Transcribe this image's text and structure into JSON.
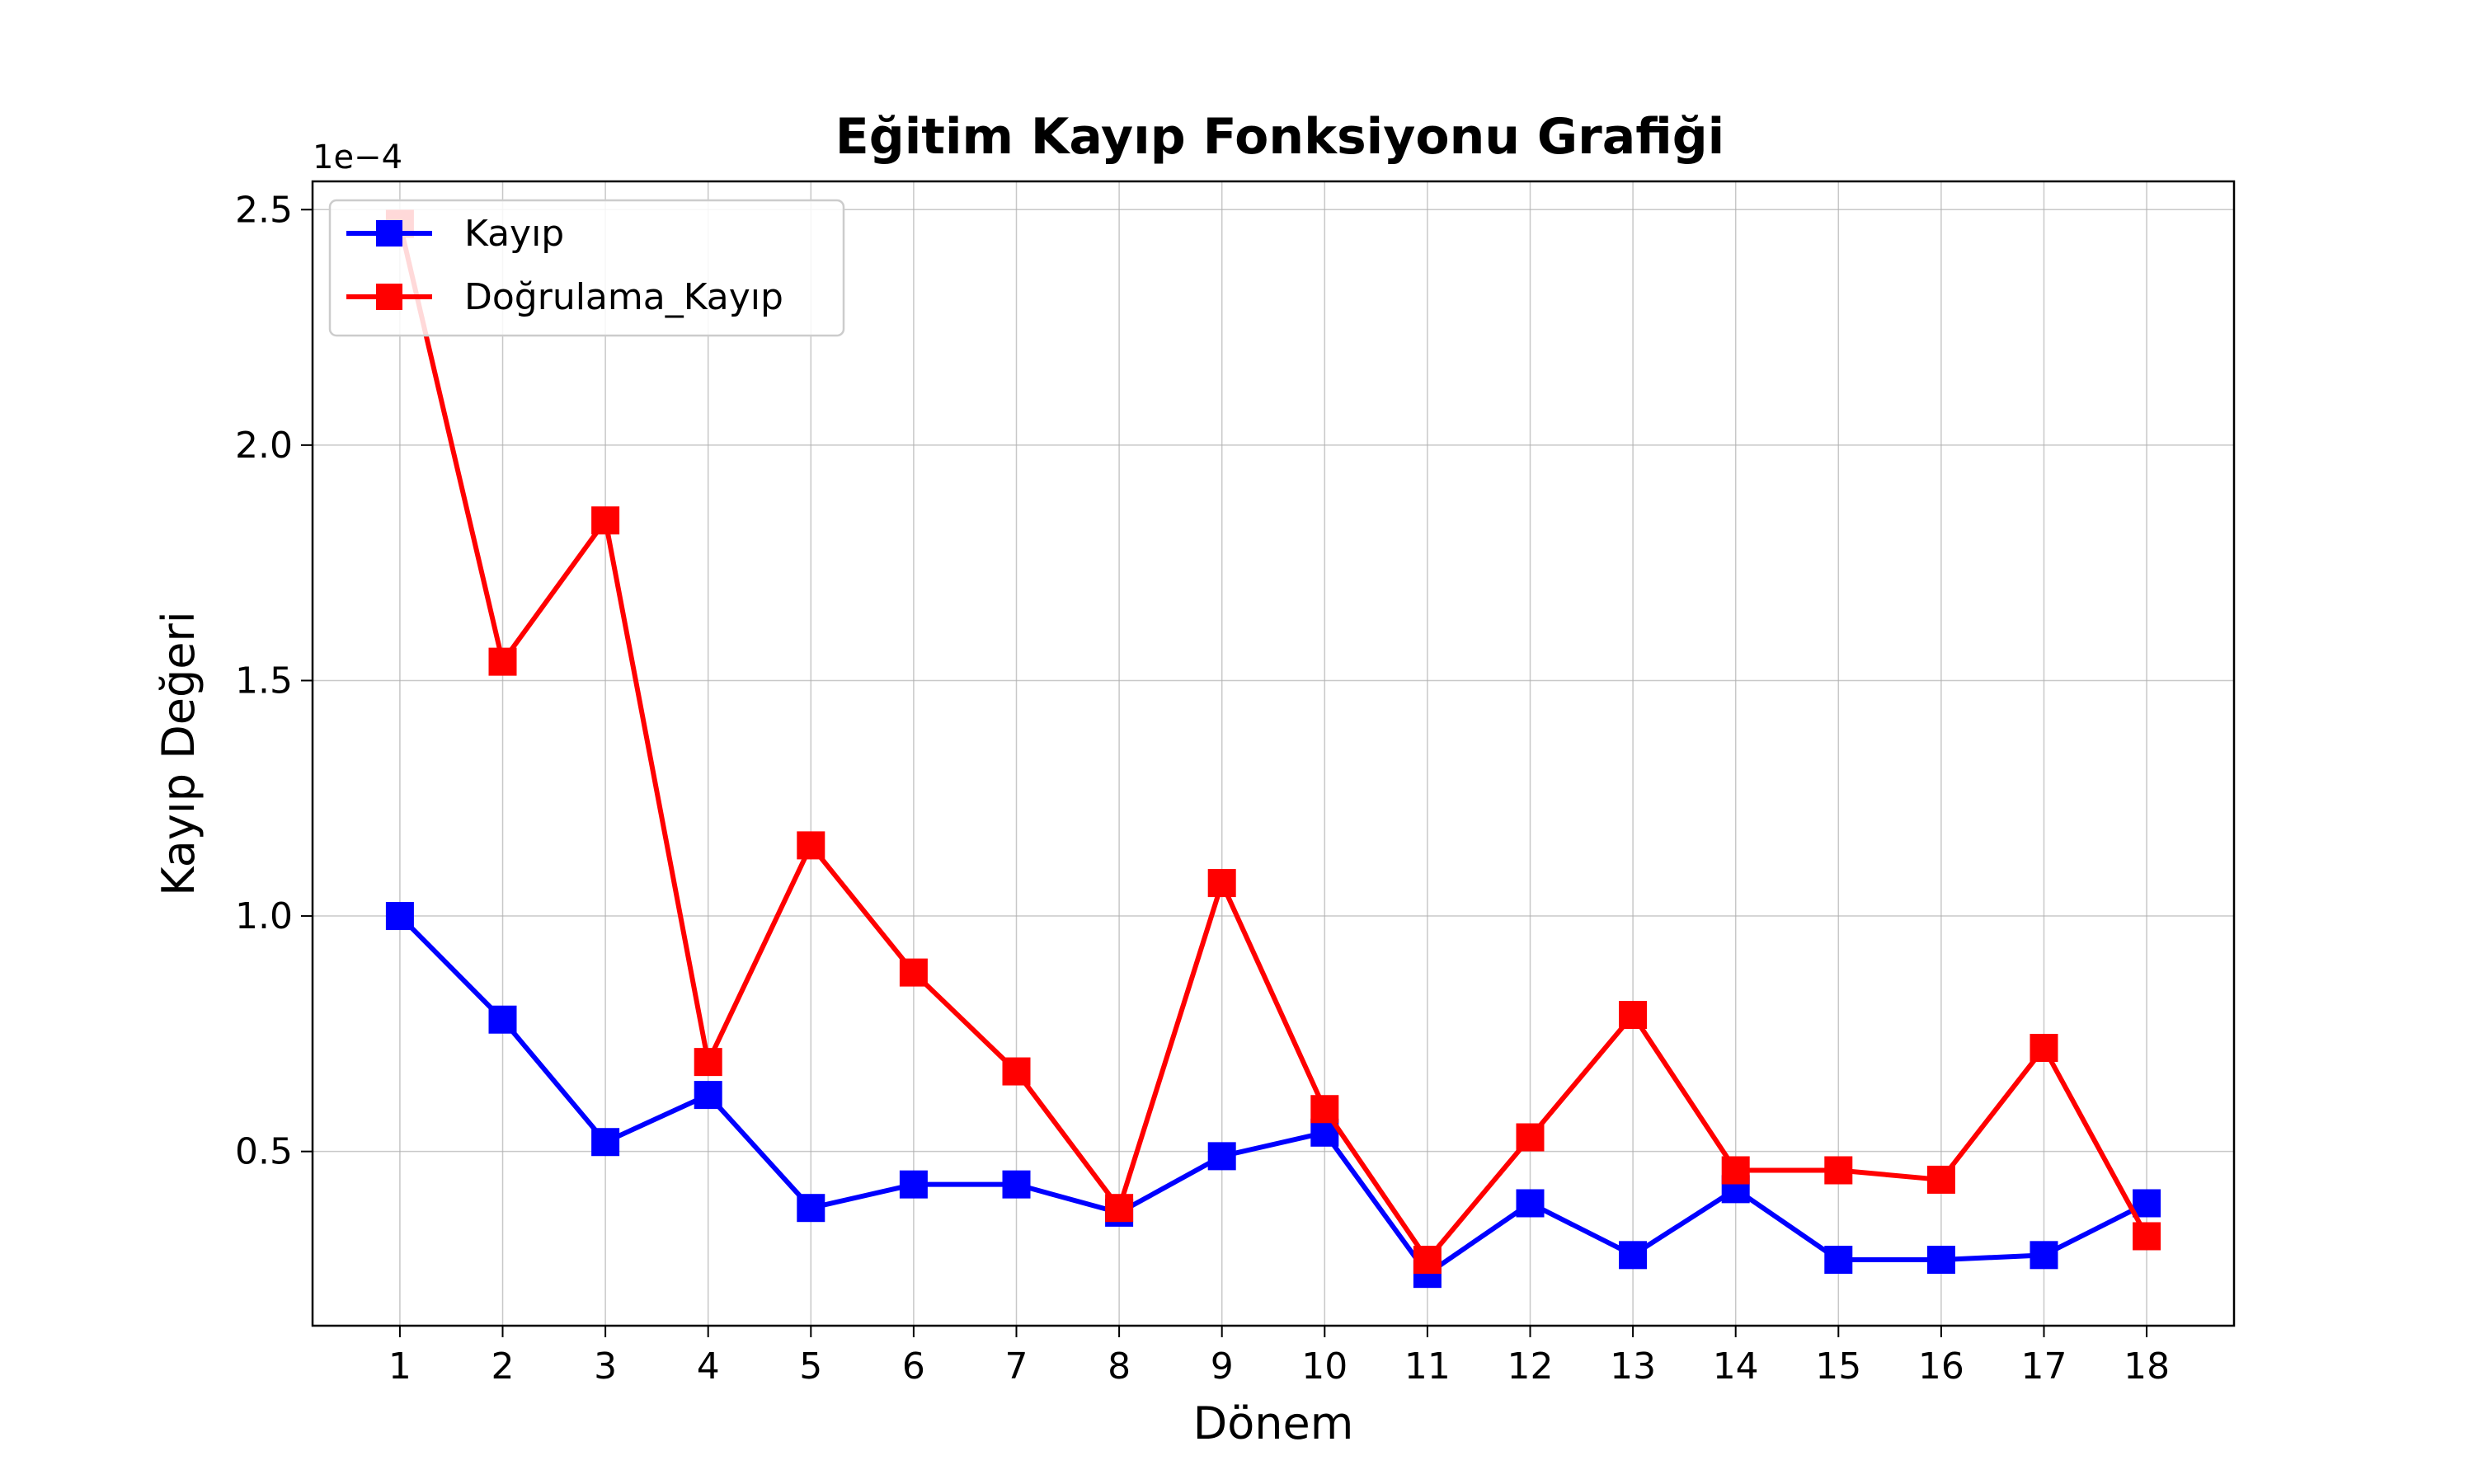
{
  "chart_data": {
    "type": "line",
    "title": "Eğitim Kayıp Fonksiyonu Grafiği",
    "xlabel": "Dönem",
    "ylabel": "Kayıp Değeri",
    "offset_text": "1e−4",
    "x": [
      1,
      2,
      3,
      4,
      5,
      6,
      7,
      8,
      9,
      10,
      11,
      12,
      13,
      14,
      15,
      16,
      17,
      18
    ],
    "xticks": [
      "1",
      "2",
      "3",
      "4",
      "5",
      "6",
      "7",
      "8",
      "9",
      "10",
      "11",
      "12",
      "13",
      "14",
      "15",
      "16",
      "17",
      "18"
    ],
    "yticks": [
      "0.5",
      "1.0",
      "1.5",
      "2.0",
      "2.5"
    ],
    "ytick_values": [
      0.5,
      1.0,
      1.5,
      2.0,
      2.5
    ],
    "y_scale_note": "values shown ×1e-4",
    "xlim": [
      0.15,
      18.85
    ],
    "ylim": [
      0.13,
      2.56
    ],
    "grid": true,
    "legend_position": "top-left",
    "series": [
      {
        "name": "Kayıp",
        "color": "#0000ff",
        "marker": "square",
        "values": [
          1.0,
          0.78,
          0.52,
          0.62,
          0.38,
          0.43,
          0.43,
          0.37,
          0.49,
          0.54,
          0.24,
          0.39,
          0.28,
          0.42,
          0.27,
          0.27,
          0.28,
          0.39
        ]
      },
      {
        "name": "Doğrulama_Kayıp",
        "color": "#ff0000",
        "marker": "square",
        "values": [
          2.47,
          1.54,
          1.84,
          0.69,
          1.15,
          0.88,
          0.67,
          0.38,
          1.07,
          0.59,
          0.27,
          0.53,
          0.79,
          0.46,
          0.46,
          0.44,
          0.72,
          0.32
        ]
      }
    ]
  }
}
